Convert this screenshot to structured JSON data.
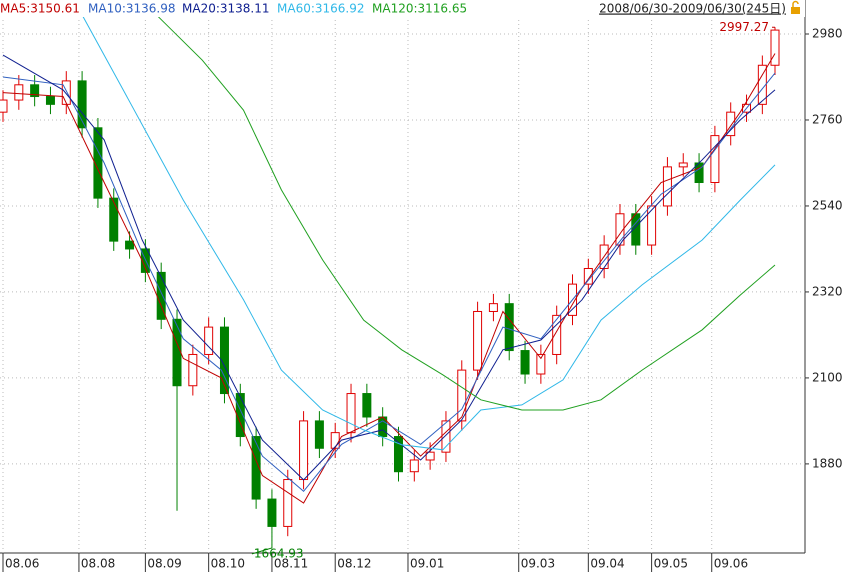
{
  "chart_data": {
    "type": "candlestick",
    "range_label": "2008/06/30-2009/06/30(245日)",
    "xlim": [
      0,
      244
    ],
    "ylim": [
      1652,
      3067
    ],
    "yticks": [
      1880,
      2100,
      2320,
      2540,
      2760,
      2980
    ],
    "xticks": [
      {
        "value": 0,
        "label": "08.06"
      },
      {
        "value": 24,
        "label": "08.08"
      },
      {
        "value": 45,
        "label": "08.09"
      },
      {
        "value": 65,
        "label": "08.10"
      },
      {
        "value": 85,
        "label": "08.11"
      },
      {
        "value": 105,
        "label": "08.12"
      },
      {
        "value": 128,
        "label": "09.01"
      },
      {
        "value": 163,
        "label": "09.03"
      },
      {
        "value": 185,
        "label": "09.04"
      },
      {
        "value": 205,
        "label": "09.05"
      },
      {
        "value": 224,
        "label": "09.06"
      }
    ],
    "grid": true,
    "up_color": "#e00000",
    "down_color": "#008000",
    "candles": {
      "x": [
        0,
        5,
        10,
        15,
        20,
        25,
        30,
        35,
        40,
        45,
        50,
        55,
        60,
        65,
        70,
        75,
        80,
        85,
        90,
        95,
        100,
        105,
        110,
        115,
        120,
        125,
        130,
        135,
        140,
        145,
        150,
        155,
        160,
        165,
        170,
        175,
        180,
        185,
        190,
        195,
        200,
        205,
        210,
        215,
        220,
        225,
        230,
        235,
        240,
        244
      ],
      "open": [
        2780,
        2811,
        2850,
        2820,
        2800,
        2860,
        2740,
        2560,
        2450,
        2430,
        2370,
        2250,
        2080,
        2160,
        2230,
        2060,
        1950,
        1790,
        1720,
        1840,
        1990,
        1920,
        1960,
        2060,
        2000,
        1950,
        1860,
        1890,
        1910,
        1990,
        2120,
        2270,
        2290,
        2170,
        2110,
        2160,
        2260,
        2340,
        2380,
        2440,
        2520,
        2440,
        2540,
        2640,
        2650,
        2600,
        2720,
        2780,
        2800,
        2900
      ],
      "high": [
        2836,
        2875,
        2875,
        2845,
        2885,
        2885,
        2765,
        2585,
        2475,
        2455,
        2395,
        2275,
        2185,
        2255,
        2255,
        2085,
        1975,
        1815,
        1865,
        2015,
        2015,
        1985,
        2085,
        2085,
        2025,
        1975,
        1915,
        1935,
        2015,
        2145,
        2295,
        2315,
        2315,
        2195,
        2185,
        2285,
        2365,
        2405,
        2465,
        2545,
        2545,
        2565,
        2665,
        2675,
        2675,
        2745,
        2805,
        2825,
        2925,
        2997.27
      ],
      "low": [
        2755,
        2786,
        2795,
        2775,
        2775,
        2715,
        2535,
        2425,
        2405,
        2345,
        2225,
        1760,
        2055,
        2135,
        2035,
        1925,
        1765,
        1664.93,
        1695,
        1815,
        1895,
        1895,
        1935,
        1975,
        1925,
        1835,
        1835,
        1865,
        1885,
        1965,
        2095,
        2245,
        2145,
        2085,
        2085,
        2135,
        2235,
        2315,
        2355,
        2415,
        2415,
        2415,
        2515,
        2615,
        2575,
        2575,
        2695,
        2755,
        2775,
        2875
      ],
      "close": [
        2811,
        2850,
        2820,
        2800,
        2860,
        2740,
        2560,
        2450,
        2430,
        2370,
        2250,
        2080,
        2160,
        2230,
        2060,
        1950,
        1790,
        1720,
        1840,
        1990,
        1920,
        1960,
        2060,
        2000,
        1950,
        1860,
        1890,
        1910,
        1990,
        2120,
        2270,
        2290,
        2170,
        2110,
        2160,
        2260,
        2340,
        2380,
        2440,
        2520,
        2440,
        2540,
        2640,
        2650,
        2600,
        2720,
        2780,
        2800,
        2900,
        2990
      ]
    },
    "series": [
      {
        "name": "MA5:3150.61",
        "color": "#c00000",
        "x": [
          0,
          19,
          32,
          44,
          57,
          69,
          82,
          95,
          107,
          120,
          132,
          145,
          158,
          170,
          183,
          196,
          208,
          221,
          233,
          244
        ],
        "values": [
          2830,
          2820,
          2600,
          2400,
          2150,
          2100,
          1850,
          1780,
          1950,
          2000,
          1900,
          2000,
          2270,
          2150,
          2330,
          2480,
          2600,
          2640,
          2780,
          2930
        ]
      },
      {
        "name": "MA10:3136.98",
        "color": "#3060c0",
        "x": [
          0,
          19,
          32,
          44,
          57,
          69,
          82,
          95,
          107,
          120,
          132,
          145,
          158,
          170,
          183,
          196,
          208,
          221,
          233,
          244
        ],
        "values": [
          2870,
          2850,
          2650,
          2420,
          2200,
          2120,
          1900,
          1810,
          1930,
          1990,
          1930,
          2020,
          2230,
          2200,
          2330,
          2460,
          2570,
          2640,
          2770,
          2880
        ]
      },
      {
        "name": "MA20:3138.11",
        "color": "#102090",
        "x": [
          0,
          19,
          32,
          44,
          57,
          69,
          82,
          95,
          107,
          120,
          132,
          145,
          158,
          170,
          183,
          196,
          208,
          221,
          233,
          244
        ],
        "values": [
          2926,
          2837,
          2709,
          2453,
          2248,
          2146,
          1941,
          1839,
          1941,
          1967,
          1890,
          1993,
          2172,
          2197,
          2300,
          2453,
          2555,
          2658,
          2760,
          2837
        ]
      },
      {
        "name": "MA60:3166.92",
        "color": "#30b8e8",
        "x": [
          25,
          38,
          57,
          76,
          88,
          101,
          114,
          126,
          139,
          151,
          164,
          177,
          189,
          202,
          221,
          233,
          244
        ],
        "values": [
          3029,
          2837,
          2555,
          2300,
          2120,
          2018,
          1967,
          1929,
          1916,
          2018,
          2031,
          2095,
          2248,
          2338,
          2453,
          2555,
          2645
        ]
      },
      {
        "name": "MA120:3116.65",
        "color": "#20a020",
        "x": [
          47,
          63,
          76,
          88,
          101,
          114,
          126,
          139,
          151,
          164,
          177,
          189,
          202,
          221,
          233,
          244
        ],
        "values": [
          3041,
          2913,
          2785,
          2581,
          2402,
          2248,
          2172,
          2108,
          2044,
          2018,
          2018,
          2044,
          2120,
          2223,
          2312,
          2389
        ]
      }
    ],
    "annotations": [
      {
        "x": 244,
        "value": 2997.27,
        "color": "#c00000"
      },
      {
        "x": 85,
        "value": 1664.93,
        "color": "#008000"
      }
    ]
  }
}
